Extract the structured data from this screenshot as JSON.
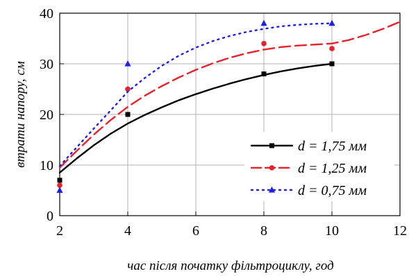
{
  "chart_data": {
    "type": "line",
    "xlabel": "час після початку фільтроциклу, год",
    "ylabel": "втрати напору, см",
    "xlim": [
      2,
      12
    ],
    "ylim": [
      0,
      40
    ],
    "x_ticks": [
      2,
      4,
      6,
      8,
      10,
      12
    ],
    "y_ticks": [
      0,
      10,
      20,
      30,
      40
    ],
    "grid": true,
    "legend_position": "bottom-right",
    "series": [
      {
        "name": "d = 1,75 мм",
        "color": "#000000",
        "line_style": "solid",
        "marker": "square",
        "points": {
          "x": [
            2,
            4,
            8,
            10
          ],
          "y": [
            7,
            20,
            28,
            30
          ]
        },
        "fit": {
          "x": [
            2,
            2.5,
            3,
            3.5,
            4,
            4.5,
            5,
            5.5,
            6,
            6.5,
            7,
            7.5,
            8,
            8.5,
            9,
            9.5,
            10
          ],
          "y": [
            8.5,
            11.3,
            13.9,
            16.2,
            18.2,
            19.9,
            21.4,
            22.8,
            24.0,
            25.1,
            26.1,
            27.0,
            27.8,
            28.5,
            29.1,
            29.6,
            30.0
          ]
        }
      },
      {
        "name": "d = 1,25 мм",
        "color": "#e8222a",
        "line_style": "dashed",
        "marker": "circle",
        "points": {
          "x": [
            2,
            4,
            8,
            10
          ],
          "y": [
            6,
            25,
            34,
            33
          ]
        },
        "fit": {
          "x": [
            2,
            2.5,
            3,
            3.5,
            4,
            4.5,
            5,
            5.5,
            6,
            6.5,
            7,
            7.5,
            8,
            8.5,
            9,
            9.5,
            10,
            10.5,
            11,
            11.5,
            12
          ],
          "y": [
            9.5,
            12.8,
            16.0,
            18.9,
            21.5,
            23.7,
            25.6,
            27.3,
            28.8,
            30.1,
            31.2,
            32.1,
            32.8,
            33.3,
            33.6,
            33.8,
            34.0,
            34.7,
            35.7,
            36.9,
            38.3
          ]
        }
      },
      {
        "name": "d = 0,75 мм",
        "color": "#1f1fe6",
        "line_style": "dotted",
        "marker": "triangle",
        "points": {
          "x": [
            2,
            4,
            8,
            10
          ],
          "y": [
            5,
            30,
            38,
            38
          ]
        },
        "fit": {
          "x": [
            2,
            2.5,
            3,
            3.5,
            4,
            4.5,
            5,
            5.5,
            6,
            6.5,
            7,
            7.5,
            8,
            8.5,
            9,
            9.5,
            10
          ],
          "y": [
            9.8,
            13.5,
            17.2,
            20.8,
            24.5,
            27.2,
            29.6,
            31.6,
            33.2,
            34.5,
            35.5,
            36.3,
            36.9,
            37.4,
            37.7,
            37.9,
            38.0
          ]
        }
      }
    ]
  }
}
